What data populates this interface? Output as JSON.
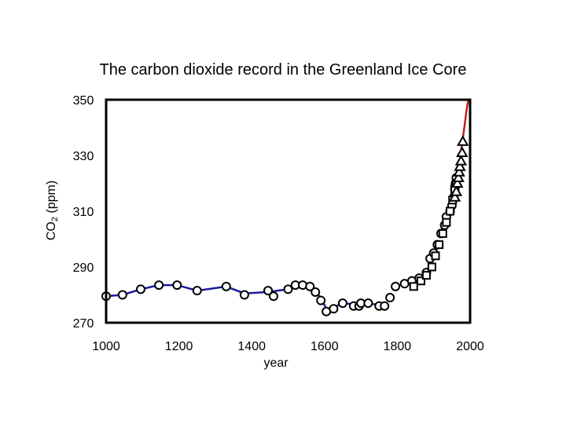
{
  "chart_data": {
    "type": "scatter",
    "title": "The carbon dioxide record in the Greenland Ice Core",
    "xlabel": "year",
    "ylabel_main": "CO",
    "ylabel_sub": "2",
    "ylabel_units": " (ppm)",
    "xlim": [
      1000,
      2000
    ],
    "ylim": [
      270,
      350
    ],
    "xticks": [
      "1000",
      "1200",
      "1400",
      "1600",
      "1800",
      "2000"
    ],
    "yticks": [
      "350",
      "330",
      "310",
      "290",
      "270"
    ],
    "grid": false,
    "legend": "none",
    "series": [
      {
        "marker": "circle",
        "color": "#000000",
        "fill": "#ffffff",
        "x": [
          1000,
          1045,
          1095,
          1145,
          1195,
          1250,
          1330,
          1380,
          1445,
          1460,
          1500,
          1520,
          1540,
          1560,
          1575,
          1590,
          1605,
          1625,
          1650,
          1680,
          1695,
          1700,
          1720,
          1750,
          1765,
          1780,
          1795,
          1820,
          1840,
          1860,
          1880,
          1890,
          1900,
          1910,
          1920,
          1930,
          1935,
          1945,
          1950,
          1955,
          1958,
          1960,
          1962
        ],
        "y": [
          279.5,
          280,
          282,
          283.5,
          283.5,
          281.5,
          283,
          280,
          281.5,
          279.5,
          282,
          283.5,
          283.5,
          283,
          281,
          278,
          274,
          275,
          277,
          276,
          276,
          277,
          277,
          276,
          276,
          279,
          283,
          284,
          285,
          286,
          288,
          293,
          295,
          298,
          302,
          305,
          308,
          310,
          312,
          315,
          318,
          320,
          322
        ]
      },
      {
        "marker": "square",
        "color": "#000000",
        "fill": "#ffffff",
        "x": [
          1845,
          1865,
          1880,
          1895,
          1905,
          1915,
          1925,
          1935,
          1945,
          1952,
          1958,
          1962
        ],
        "y": [
          283,
          285,
          287,
          290,
          294,
          298,
          302,
          306,
          310,
          314,
          318,
          320
        ]
      },
      {
        "marker": "triangle",
        "color": "#000000",
        "fill": "#ffffff",
        "x": [
          1958,
          1962,
          1965,
          1968,
          1970,
          1972,
          1975,
          1978,
          1980
        ],
        "y": [
          315,
          317,
          320,
          322,
          324,
          326,
          328,
          331,
          335
        ]
      }
    ],
    "lines": [
      {
        "color": "#1a1aa0",
        "x": [
          1000,
          1045,
          1095,
          1145,
          1195,
          1250,
          1330,
          1380,
          1445,
          1500,
          1540,
          1560,
          1590,
          1605,
          1625,
          1650,
          1690,
          1720,
          1765
        ],
        "y": [
          279.5,
          280,
          282,
          283.5,
          283.5,
          281.5,
          283,
          280.5,
          281,
          282,
          283.5,
          283,
          279,
          275,
          275.5,
          277,
          276.5,
          277,
          276
        ]
      },
      {
        "color": "#c02020",
        "x": [
          1955,
          1960,
          1965,
          1970,
          1975,
          1980,
          1985,
          1990,
          1995
        ],
        "y": [
          312,
          318,
          322,
          326,
          331,
          336,
          341,
          346,
          351
        ]
      }
    ]
  }
}
